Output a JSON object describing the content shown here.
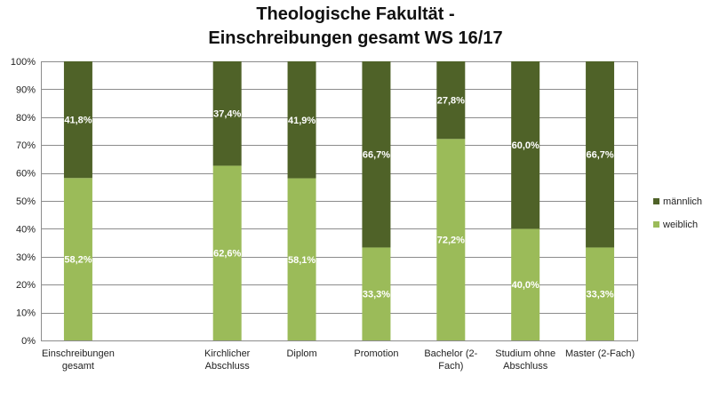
{
  "chart_data": {
    "type": "bar",
    "stacked": true,
    "title_lines": [
      "Theologische Fakultät -",
      "Einschreibungen gesamt WS 16/17"
    ],
    "categories": [
      [
        "Einschreibungen",
        "gesamt"
      ],
      [],
      [
        "Kirchlicher",
        "Abschluss"
      ],
      [
        "Diplom"
      ],
      [
        "Promotion"
      ],
      [
        "Bachelor (2-",
        "Fach)"
      ],
      [
        "Studium ohne",
        "Abschluss"
      ],
      [
        "Master (2-Fach)"
      ]
    ],
    "series": [
      {
        "name": "weiblich",
        "color": "#9bbb59",
        "values": [
          58.2,
          null,
          62.6,
          58.1,
          33.3,
          72.2,
          40.0,
          33.3
        ],
        "labels": [
          "58,2%",
          "",
          "62,6%",
          "58,1%",
          "33,3%",
          "72,2%",
          "40,0%",
          "33,3%"
        ]
      },
      {
        "name": "männlich",
        "color": "#4f6228",
        "values": [
          41.8,
          null,
          37.4,
          41.9,
          66.7,
          27.8,
          60.0,
          66.7
        ],
        "labels": [
          "41,8%",
          "",
          "37,4%",
          "41,9%",
          "66,7%",
          "27,8%",
          "60,0%",
          "66,7%"
        ]
      }
    ],
    "y_ticks": [
      "0%",
      "10%",
      "20%",
      "30%",
      "40%",
      "50%",
      "60%",
      "70%",
      "80%",
      "90%",
      "100%"
    ],
    "ylim": [
      0,
      100
    ],
    "grid": true,
    "legend": [
      "männlich",
      "weiblich"
    ],
    "legend_position": "right"
  }
}
